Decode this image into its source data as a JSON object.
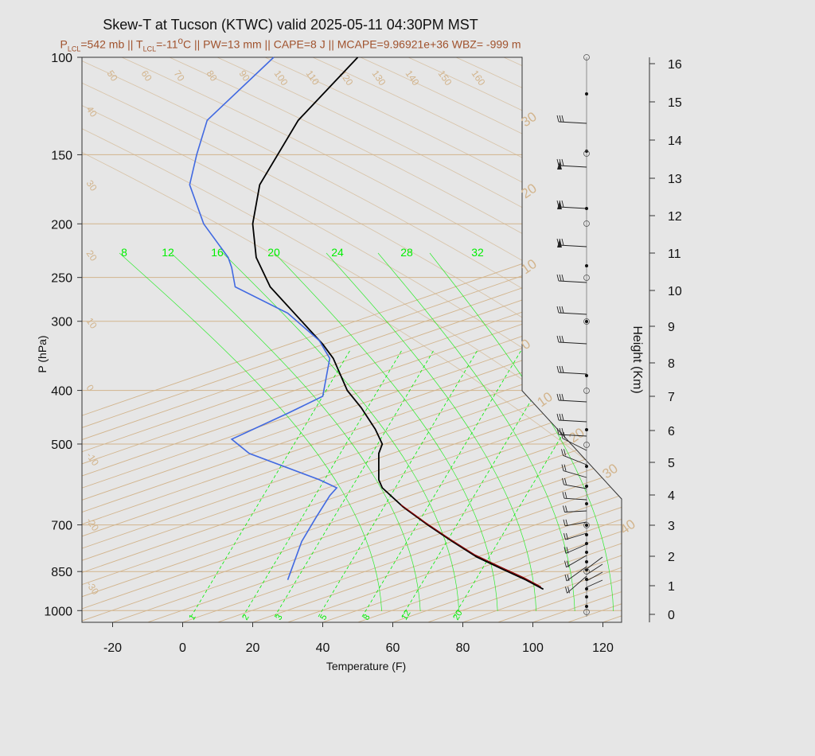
{
  "title": "Skew-T at Tucson (KTWC) valid 2025-05-11 04:30PM MST",
  "subtitle": {
    "p_lcl_label": "P",
    "p_lcl_sub": "LCL",
    "p_lcl_value": "=542 mb || ",
    "t_lcl_label": "T",
    "t_lcl_sub": "LCL",
    "t_lcl_value": "=-11",
    "t_lcl_unit": "C || PW=13 mm || CAPE=8 J || MCAPE=9.96921e+36 WBZ= -999 m"
  },
  "colors": {
    "temperature": "#000000",
    "dewpoint": "#4169e1",
    "parcel": "#8b0000",
    "isotherm": "#d2b48c",
    "mixing_ratio": "#00ee00",
    "grid": "#d2b48c",
    "subtitle": "#a0522d"
  },
  "chart_data": {
    "type": "line",
    "xlabel": "Temperature (F)",
    "ylabel": "P (hPa)",
    "y2label": "Height (Km)",
    "x_ticks": [
      "-20",
      "0",
      "20",
      "40",
      "60",
      "80",
      "100",
      "120"
    ],
    "x_tick_values": [
      -20,
      0,
      20,
      40,
      60,
      80,
      100,
      120
    ],
    "xlim": [
      -28,
      125
    ],
    "p_ticks": [
      100,
      150,
      200,
      250,
      300,
      400,
      500,
      700,
      850,
      1000
    ],
    "ylim": [
      1050,
      100
    ],
    "y_scale": "log",
    "height_ticks": [
      0,
      1,
      2,
      3,
      4,
      5,
      6,
      7,
      8,
      9,
      10,
      11,
      12,
      13,
      14,
      15,
      16
    ],
    "isotherm_labels_top": [
      "50",
      "60",
      "70",
      "80",
      "90",
      "100",
      "110",
      "120",
      "130",
      "140",
      "150",
      "160"
    ],
    "isotherm_labels_left": [
      "40",
      "30",
      "20",
      "10",
      "0",
      "-10",
      "-20",
      "-30"
    ],
    "isotherm_labels_right": [
      "30",
      "20",
      "10",
      "0",
      "10",
      "20",
      "30",
      "40"
    ],
    "mixing_ratio_top_labels": [
      "8",
      "12",
      "16",
      "20",
      "24",
      "28",
      "32"
    ],
    "mixing_ratio_bottom_labels": [
      "1",
      "2",
      "3",
      "5",
      "8",
      "12",
      "20"
    ],
    "series": [
      {
        "key": "temperature",
        "p": [
          915,
          880,
          840,
          800,
          750,
          700,
          650,
          600,
          580,
          560,
          520,
          500,
          470,
          430,
          400,
          350,
          330,
          300,
          260,
          230,
          200,
          170,
          130,
          100
        ],
        "t": [
          103,
          98,
          91,
          84,
          77,
          70,
          63,
          57,
          56,
          56,
          56,
          57,
          55,
          51,
          47,
          43,
          40,
          34,
          25,
          21,
          20,
          22,
          33,
          50
        ]
      },
      {
        "key": "dewpoint",
        "p": [
          880,
          750,
          680,
          620,
          600,
          580,
          520,
          490,
          440,
          410,
          350,
          325,
          290,
          260,
          240,
          230,
          200,
          170,
          150,
          130,
          100
        ],
        "t": [
          30,
          34,
          38,
          42,
          44,
          39,
          19,
          14,
          30,
          40,
          42,
          39,
          30,
          15,
          14,
          13,
          6,
          2,
          4,
          7,
          26
        ]
      }
    ]
  }
}
